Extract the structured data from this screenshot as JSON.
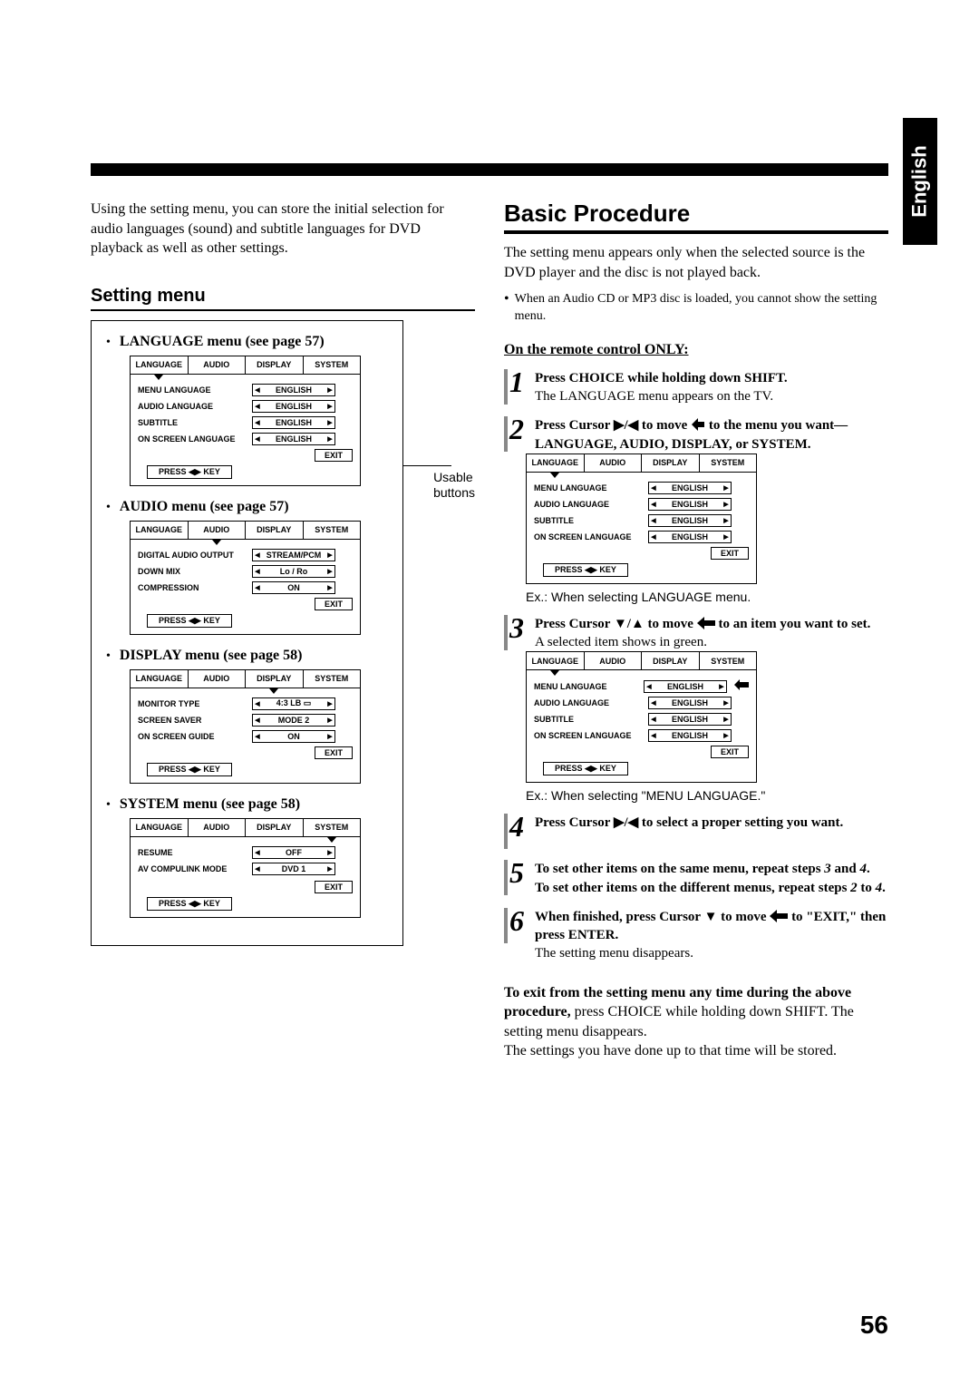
{
  "langTab": "English",
  "pageNumber": "56",
  "left": {
    "intro": "Using the setting menu, you can store the initial selection for audio languages (sound) and subtitle languages for DVD playback as well as other settings.",
    "sectionTitle": "Setting menu",
    "usable": "Usable\nbuttons",
    "tabs": [
      "LANGUAGE",
      "AUDIO",
      "DISPLAY",
      "SYSTEM"
    ],
    "exit": "EXIT",
    "pressKey": "PRESS ◀▶ KEY",
    "menus": [
      {
        "title": "LANGUAGE menu (see page 57)",
        "activeTab": 0,
        "rows": [
          {
            "label": "MENU LANGUAGE",
            "value": "ENGLISH"
          },
          {
            "label": "AUDIO LANGUAGE",
            "value": "ENGLISH"
          },
          {
            "label": "SUBTITLE",
            "value": "ENGLISH"
          },
          {
            "label": "ON SCREEN LANGUAGE",
            "value": "ENGLISH"
          }
        ]
      },
      {
        "title": "AUDIO menu (see page 57)",
        "activeTab": 1,
        "rows": [
          {
            "label": "DIGITAL AUDIO OUTPUT",
            "value": "STREAM/PCM"
          },
          {
            "label": "DOWN MIX",
            "value": "Lo / Ro"
          },
          {
            "label": "COMPRESSION",
            "value": "ON"
          }
        ]
      },
      {
        "title": "DISPLAY menu (see page 58)",
        "activeTab": 2,
        "rows": [
          {
            "label": "MONITOR TYPE",
            "value": "4:3 LB ▭"
          },
          {
            "label": "SCREEN SAVER",
            "value": "MODE 2"
          },
          {
            "label": "ON SCREEN GUIDE",
            "value": "ON"
          }
        ]
      },
      {
        "title": "SYSTEM menu (see page 58)",
        "activeTab": 3,
        "rows": [
          {
            "label": "RESUME",
            "value": "OFF"
          },
          {
            "label": "AV COMPULINK MODE",
            "value": "DVD 1"
          }
        ]
      }
    ]
  },
  "right": {
    "sectionTitle": "Basic Procedure",
    "intro1": "The setting menu appears only when the selected source is the DVD player and the disc is not played back.",
    "introBullet": "When an Audio CD or MP3 disc is loaded, you cannot show the setting menu.",
    "remoteOnly": "On the remote control ONLY:",
    "steps": {
      "s1a": "Press CHOICE while holding down SHIFT.",
      "s1b": "The LANGUAGE menu appears on the TV.",
      "s2a": "Press Cursor ▶/◀ to move",
      "s2b": "to the menu you want—LANGUAGE, AUDIO, DISPLAY, or SYSTEM.",
      "s3a": "Press Cursor ▼/▲ to move",
      "s3b": "to an item you want to set.",
      "s3c": "A selected item shows in green.",
      "s4": "Press Cursor ▶/◀ to select a proper setting you want.",
      "s5a": "To set other items on the same menu, repeat steps 3 and 4.",
      "s5b": "To set other items on the different menus, repeat steps 2 to 4.",
      "s6a": "When finished, press Cursor ▼ to move",
      "s6b": "to \"EXIT,\" then press ENTER.",
      "s6c": "The setting menu disappears."
    },
    "ex1": "Ex.: When selecting LANGUAGE menu.",
    "ex2": "Ex.: When selecting \"MENU LANGUAGE.\"",
    "exitPara1": "To exit from the setting menu any time during the above procedure,",
    "exitPara2": " press CHOICE while holding down SHIFT. The setting menu disappears.",
    "exitPara3": "The settings you have done up to that time will be stored.",
    "menuRows": [
      {
        "label": "MENU LANGUAGE",
        "value": "ENGLISH"
      },
      {
        "label": "AUDIO LANGUAGE",
        "value": "ENGLISH"
      },
      {
        "label": "SUBTITLE",
        "value": "ENGLISH"
      },
      {
        "label": "ON SCREEN LANGUAGE",
        "value": "ENGLISH"
      }
    ],
    "exit": "EXIT",
    "pressKey": "PRESS ◀▶ KEY"
  },
  "colors": {
    "rule": "#000000",
    "page_bg": "#ffffff",
    "step_bar": "#888888"
  }
}
